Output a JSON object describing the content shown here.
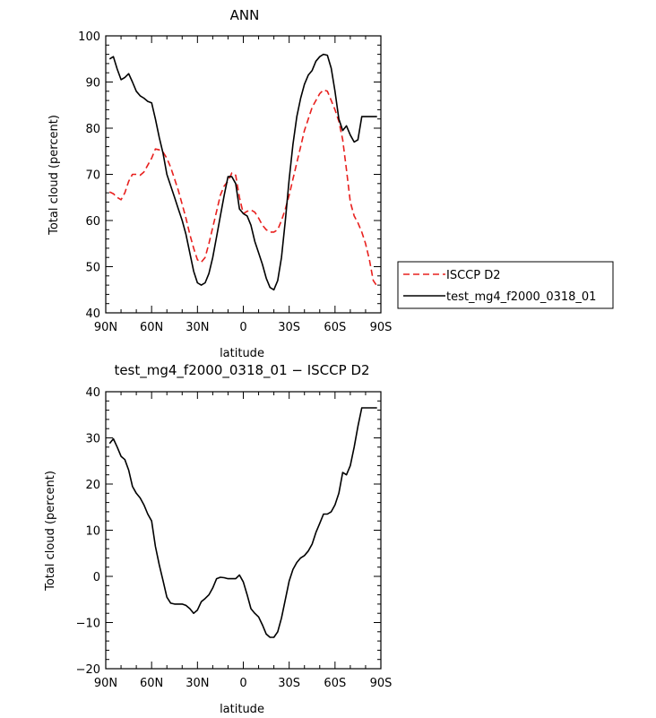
{
  "chart_data": [
    {
      "type": "line",
      "title": "ANN",
      "xlabel": "latitude",
      "ylabel": "Total cloud (percent)",
      "xlim": [
        -90,
        90
      ],
      "ylim": [
        40,
        100
      ],
      "x_ticks": [
        -90,
        -60,
        -30,
        0,
        30,
        60,
        90
      ],
      "x_tick_labels": [
        "90N",
        "60N",
        "30N",
        "0",
        "30S",
        "60S",
        "90S"
      ],
      "y_ticks": [
        40,
        50,
        60,
        70,
        80,
        90,
        100
      ],
      "y_tick_labels": [
        "40",
        "50",
        "60",
        "70",
        "80",
        "90",
        "100"
      ],
      "legend_position": "right",
      "series": [
        {
          "name": "ISCCP D2",
          "color": "#e8201e",
          "dash": true,
          "x": [
            -87.5,
            -85,
            -82.5,
            -80,
            -77.5,
            -75,
            -72.5,
            -70,
            -67.5,
            -65,
            -62.5,
            -60,
            -57.5,
            -55,
            -52.5,
            -50,
            -47.5,
            -45,
            -42.5,
            -40,
            -37.5,
            -35,
            -32.5,
            -30,
            -27.5,
            -25,
            -22.5,
            -20,
            -17.5,
            -15,
            -12.5,
            -10,
            -7.5,
            -5,
            -2.5,
            0,
            2.5,
            5,
            7.5,
            10,
            12.5,
            15,
            17.5,
            20,
            22.5,
            25,
            27.5,
            30,
            32.5,
            35,
            37.5,
            40,
            42.5,
            45,
            47.5,
            50,
            52.5,
            55,
            57.5,
            60,
            62.5,
            65,
            67.5,
            70,
            72.5,
            75,
            77.5,
            80,
            82.5,
            85,
            87.5
          ],
          "values": [
            66.2,
            65.8,
            65.0,
            64.5,
            66.0,
            68.5,
            70.0,
            70.0,
            69.8,
            70.5,
            72.0,
            73.5,
            75.5,
            75.3,
            74.8,
            73.5,
            71.5,
            69.0,
            66.5,
            63.5,
            60.5,
            57.0,
            54.0,
            51.5,
            51.0,
            52.0,
            55.0,
            58.5,
            62.0,
            65.5,
            67.5,
            68.5,
            70.3,
            69.8,
            65.0,
            61.5,
            62.0,
            62.3,
            61.8,
            60.5,
            59.0,
            58.0,
            57.5,
            57.5,
            58.0,
            60.0,
            62.5,
            65.5,
            69.0,
            72.5,
            76.0,
            79.5,
            82.0,
            84.5,
            86.0,
            87.5,
            88.3,
            88.0,
            86.0,
            84.0,
            81.5,
            77.5,
            71.0,
            64.0,
            61.0,
            59.5,
            57.5,
            55.0,
            51.5,
            47.0,
            45.8
          ]
        },
        {
          "name": "test_mg4_f2000_0318_01",
          "color": "#000000",
          "dash": false,
          "x": [
            -87.5,
            -85,
            -82.5,
            -80,
            -77.5,
            -75,
            -72.5,
            -70,
            -67.5,
            -65,
            -62.5,
            -60,
            -57.5,
            -55,
            -52.5,
            -50,
            -47.5,
            -45,
            -42.5,
            -40,
            -37.5,
            -35,
            -32.5,
            -30,
            -27.5,
            -25,
            -22.5,
            -20,
            -17.5,
            -15,
            -12.5,
            -10,
            -7.5,
            -5,
            -2.5,
            0,
            2.5,
            5,
            7.5,
            10,
            12.5,
            15,
            17.5,
            20,
            22.5,
            25,
            27.5,
            30,
            32.5,
            35,
            37.5,
            40,
            42.5,
            45,
            47.5,
            50,
            52.5,
            55,
            57.5,
            60,
            62.5,
            65,
            67.5,
            70,
            72.5,
            75,
            77.5,
            80,
            82.5,
            85,
            87.5
          ],
          "values": [
            95.0,
            95.5,
            92.8,
            90.5,
            91.0,
            91.8,
            90.0,
            88.0,
            87.0,
            86.5,
            85.8,
            85.5,
            82.0,
            78.0,
            74.5,
            70.0,
            67.5,
            65.0,
            62.5,
            60.0,
            57.0,
            53.0,
            49.0,
            46.5,
            46.0,
            46.5,
            48.5,
            52.0,
            56.5,
            61.0,
            65.5,
            69.5,
            69.5,
            68.0,
            62.5,
            61.5,
            61.0,
            59.0,
            55.5,
            53.0,
            50.5,
            47.5,
            45.5,
            45.0,
            47.0,
            52.0,
            60.0,
            69.0,
            76.5,
            82.5,
            86.5,
            89.5,
            91.5,
            92.5,
            94.5,
            95.5,
            96.0,
            95.8,
            93.0,
            88.0,
            82.0,
            79.5,
            80.5,
            78.5,
            77.0,
            77.5,
            82.5,
            82.5,
            82.5,
            82.5,
            82.5
          ]
        }
      ]
    },
    {
      "type": "line",
      "title": "test_mg4_f2000_0318_01 − ISCCP D2",
      "xlabel": "latitude",
      "ylabel": "Total cloud (percent)",
      "xlim": [
        -90,
        90
      ],
      "ylim": [
        -20,
        40
      ],
      "x_ticks": [
        -90,
        -60,
        -30,
        0,
        30,
        60,
        90
      ],
      "x_tick_labels": [
        "90N",
        "60N",
        "30N",
        "0",
        "30S",
        "60S",
        "90S"
      ],
      "y_ticks": [
        -20,
        -10,
        0,
        10,
        20,
        30,
        40
      ],
      "y_tick_labels": [
        "−20",
        "−10",
        "0",
        "10",
        "20",
        "30",
        "40"
      ],
      "series": [
        {
          "color": "#000000",
          "dash": false,
          "x": [
            -87.5,
            -85,
            -82.5,
            -80,
            -77.5,
            -75,
            -72.5,
            -70,
            -67.5,
            -65,
            -62.5,
            -60,
            -57.5,
            -55,
            -52.5,
            -50,
            -47.5,
            -45,
            -42.5,
            -40,
            -37.5,
            -35,
            -32.5,
            -30,
            -27.5,
            -25,
            -22.5,
            -20,
            -17.5,
            -15,
            -12.5,
            -10,
            -7.5,
            -5,
            -2.5,
            0,
            2.5,
            5,
            7.5,
            10,
            12.5,
            15,
            17.5,
            20,
            22.5,
            25,
            27.5,
            30,
            32.5,
            35,
            37.5,
            40,
            42.5,
            45,
            47.5,
            50,
            52.5,
            55,
            57.5,
            60,
            62.5,
            65,
            67.5,
            70,
            72.5,
            75,
            77.5,
            80,
            82.5,
            85,
            87.5
          ],
          "values": [
            28.8,
            29.8,
            28.0,
            26.0,
            25.3,
            23.0,
            19.5,
            18.0,
            17.0,
            15.5,
            13.5,
            12.0,
            6.5,
            2.5,
            -1.0,
            -4.5,
            -5.8,
            -6.0,
            -6.0,
            -6.0,
            -6.3,
            -7.0,
            -8.0,
            -7.3,
            -5.5,
            -4.8,
            -4.0,
            -2.5,
            -0.5,
            -0.2,
            -0.3,
            -0.5,
            -0.5,
            -0.5,
            0.3,
            -1.2,
            -4.0,
            -7.0,
            -8.0,
            -8.8,
            -10.5,
            -12.5,
            -13.2,
            -13.2,
            -12.0,
            -9.0,
            -5.0,
            -1.0,
            1.5,
            3.0,
            4.0,
            4.5,
            5.5,
            7.0,
            9.5,
            11.5,
            13.5,
            13.5,
            14.0,
            15.5,
            18.0,
            22.5,
            22.0,
            24.0,
            28.0,
            32.5,
            36.5,
            36.5,
            36.5,
            36.5,
            36.5
          ]
        }
      ]
    }
  ]
}
